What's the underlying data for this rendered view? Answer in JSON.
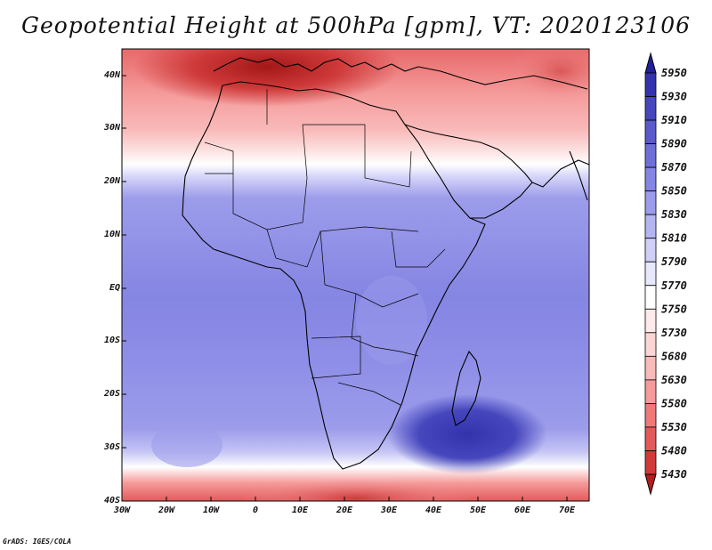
{
  "map": {
    "title": "Geopotential Height at 500hPa [gpm], VT: 2020123106",
    "variable": "Geopotential Height",
    "level": "500hPa",
    "units": "gpm",
    "valid_time": "2020123106",
    "lon_range": [
      -30,
      75
    ],
    "lat_range": [
      -40,
      45
    ],
    "lat_ticks": [
      "40N",
      "30N",
      "20N",
      "10N",
      "EQ",
      "10S",
      "20S",
      "30S",
      "40S"
    ],
    "lon_ticks": [
      "30W",
      "20W",
      "10W",
      "0",
      "10E",
      "20E",
      "30E",
      "40E",
      "50E",
      "60E",
      "70E"
    ]
  },
  "colorbar": {
    "levels": [
      "5430",
      "5480",
      "5530",
      "5580",
      "5630",
      "5680",
      "5730",
      "5750",
      "5770",
      "5790",
      "5810",
      "5830",
      "5850",
      "5870",
      "5890",
      "5910",
      "5930",
      "5950"
    ],
    "colors": [
      "#b41e1e",
      "#cf3a3a",
      "#e35a5a",
      "#ee7a7a",
      "#f59b9b",
      "#f9baba",
      "#fcd5d5",
      "#feeaea",
      "#ffffff",
      "#e8e8fc",
      "#cfcff8",
      "#b5b5f2",
      "#9c9ceb",
      "#8585e3",
      "#6f6fd8",
      "#5a5acb",
      "#4646bd",
      "#3333ad",
      "#21219c"
    ]
  },
  "footer": "GrADS: IGES/COLA"
}
